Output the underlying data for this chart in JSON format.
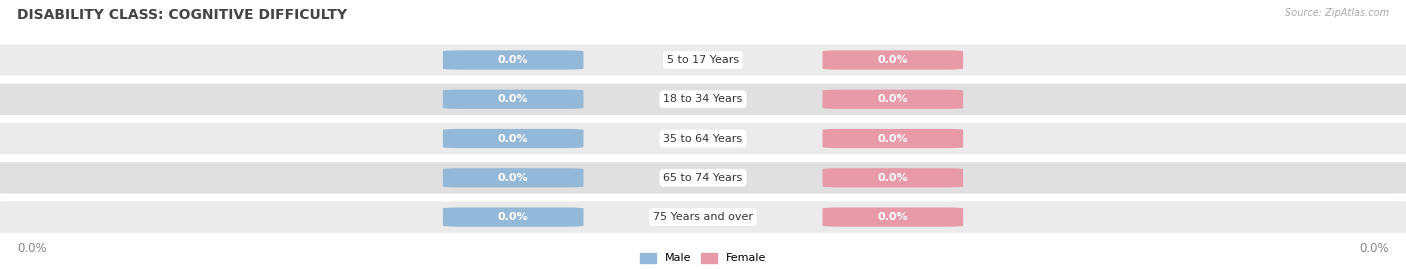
{
  "title": "DISABILITY CLASS: COGNITIVE DIFFICULTY",
  "source_text": "Source: ZipAtlas.com",
  "categories": [
    "5 to 17 Years",
    "18 to 34 Years",
    "35 to 64 Years",
    "65 to 74 Years",
    "75 Years and over"
  ],
  "male_values": [
    0.0,
    0.0,
    0.0,
    0.0,
    0.0
  ],
  "female_values": [
    0.0,
    0.0,
    0.0,
    0.0,
    0.0
  ],
  "male_color": "#94b8d8",
  "female_color": "#e89aa8",
  "row_bg_color_odd": "#ebebeb",
  "row_bg_color_even": "#e0e0e0",
  "title_fontsize": 10,
  "label_fontsize": 8,
  "value_fontsize": 8,
  "tick_fontsize": 8.5,
  "figsize": [
    14.06,
    2.69
  ],
  "dpi": 100
}
